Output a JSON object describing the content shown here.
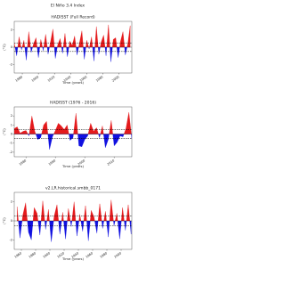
{
  "title": "El Niño 3.4 Index",
  "chart_data": [
    {
      "type": "area",
      "title": "HADISST (Full Record)",
      "xlabel": "Time (years)",
      "ylabel": "(°C)",
      "positive_color": "#e41a1c",
      "negative_color": "#1010e0",
      "thresholds": [
        0.5,
        -0.5
      ],
      "x": [
        1870,
        1873,
        1876,
        1879,
        1882,
        1885,
        1888,
        1891,
        1894,
        1897,
        1900,
        1903,
        1906,
        1909,
        1912,
        1915,
        1918,
        1921,
        1924,
        1927,
        1930,
        1933,
        1936,
        1939,
        1942,
        1945,
        1948,
        1951,
        1954,
        1957,
        1960,
        1963,
        1966,
        1969,
        1972,
        1975,
        1978,
        1981,
        1984,
        1987,
        1990,
        1993,
        1996,
        1999,
        2002,
        2005,
        2008,
        2011,
        2014
      ],
      "values": [
        0.5,
        -1.0,
        1.2,
        -0.3,
        0.8,
        -1.5,
        1.8,
        -0.6,
        0.4,
        1.1,
        -1.2,
        0.9,
        -0.4,
        1.5,
        -0.8,
        0.6,
        2.1,
        -1.3,
        0.3,
        1.0,
        -0.7,
        1.6,
        -1.1,
        0.7,
        0.2,
        1.3,
        -0.9,
        0.5,
        1.9,
        -1.4,
        0.8,
        -0.2,
        1.2,
        -1.6,
        2.4,
        -0.8,
        0.6,
        1.4,
        -1.0,
        2.6,
        -1.7,
        0.9,
        1.1,
        -1.2,
        0.7,
        1.8,
        -0.9,
        0.4,
        2.5
      ],
      "xlim": [
        1870,
        2016
      ],
      "xticks": [
        1880,
        1900,
        1920,
        1940,
        1960,
        1980,
        2000
      ],
      "ylim": [
        -3,
        3
      ],
      "yticks": [
        -2,
        0,
        2
      ]
    },
    {
      "type": "area",
      "title": "HADISST (1976 - 2016)",
      "xlabel": "Time (years)",
      "ylabel": "(°C)",
      "positive_color": "#e41a1c",
      "negative_color": "#1010e0",
      "thresholds": [
        0.5,
        -0.5
      ],
      "x": [
        1976,
        1977,
        1978,
        1979,
        1980,
        1981,
        1982,
        1983,
        1984,
        1985,
        1986,
        1987,
        1988,
        1989,
        1990,
        1991,
        1992,
        1993,
        1994,
        1995,
        1996,
        1997,
        1998,
        1999,
        2000,
        2001,
        2002,
        2003,
        2004,
        2005,
        2006,
        2007,
        2008,
        2009,
        2010,
        2011,
        2012,
        2013,
        2014,
        2015,
        2016
      ],
      "values": [
        0.6,
        0.8,
        0.1,
        0.3,
        0.4,
        -0.2,
        2.0,
        0.3,
        -0.6,
        -0.4,
        1.0,
        1.4,
        -1.7,
        -0.3,
        0.4,
        1.2,
        0.9,
        0.5,
        1.0,
        -0.7,
        -0.4,
        2.3,
        -1.3,
        -1.4,
        -0.6,
        -0.2,
        1.2,
        0.3,
        0.7,
        -0.4,
        0.9,
        -1.5,
        -0.6,
        1.5,
        -1.3,
        -0.9,
        -0.2,
        -0.3,
        0.6,
        2.4,
        -0.5
      ],
      "xlim": [
        1976,
        2016
      ],
      "xticks": [
        1980,
        1990,
        2000,
        2010
      ],
      "ylim": [
        -2.5,
        3
      ],
      "yticks": [
        -2,
        -1,
        0,
        1,
        2
      ]
    },
    {
      "type": "area",
      "title": "v2.LR.historical.smbb_0171",
      "xlabel": "Time (years)",
      "ylabel": "(°C)",
      "positive_color": "#e41a1c",
      "negative_color": "#1010e0",
      "thresholds": [
        0.5,
        -0.5
      ],
      "x": [
        1854,
        1858,
        1862,
        1866,
        1870,
        1874,
        1878,
        1882,
        1886,
        1890,
        1894,
        1898,
        1902,
        1906,
        1910,
        1914,
        1918,
        1922,
        1926,
        1930,
        1934,
        1938,
        1942,
        1946,
        1950,
        1954,
        1958,
        1962,
        1966,
        1970,
        1974,
        1978,
        1982,
        1986,
        1990,
        1994,
        1998,
        2002,
        2006,
        2010,
        2014
      ],
      "values": [
        1.5,
        -1.8,
        0.6,
        1.9,
        -1.2,
        -2.0,
        1.4,
        0.8,
        -1.5,
        2.1,
        -0.9,
        1.2,
        -2.2,
        0.5,
        1.7,
        -1.4,
        0.9,
        -1.9,
        1.3,
        -0.6,
        2.0,
        -1.6,
        0.7,
        -1.1,
        1.6,
        -2.1,
        1.1,
        0.4,
        -1.3,
        1.8,
        -0.8,
        1.0,
        -1.7,
        2.2,
        -0.5,
        0.8,
        -1.9,
        1.4,
        -1.0,
        1.7,
        -1.4
      ],
      "xlim": [
        1850,
        2015
      ],
      "xticks": [
        1860,
        1880,
        1900,
        1920,
        1940,
        1960,
        1980,
        2000
      ],
      "ylim": [
        -3,
        3
      ],
      "yticks": [
        -2,
        0,
        2
      ]
    }
  ]
}
